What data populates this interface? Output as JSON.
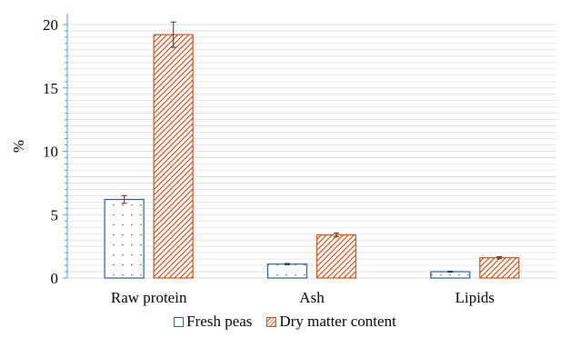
{
  "chart_data": {
    "type": "bar",
    "title": "",
    "xlabel": "",
    "ylabel": "%",
    "ylim": [
      0,
      20
    ],
    "yticks": [
      0,
      5,
      10,
      15,
      20
    ],
    "grid": true,
    "legend_position": "bottom",
    "categories": [
      "Raw protein",
      "Ash",
      "Lipids"
    ],
    "series": [
      {
        "name": "Fresh peas",
        "values": [
          6.2,
          1.1,
          0.5
        ],
        "errors": [
          0.3,
          0.05,
          0.04
        ],
        "color": "#2e5f8a",
        "pattern": "dots"
      },
      {
        "name": "Dry matter content",
        "values": [
          19.2,
          3.4,
          1.6
        ],
        "errors": [
          1.0,
          0.15,
          0.08
        ],
        "color": "#c0561e",
        "pattern": "diagonal-hatch"
      }
    ],
    "colors": {
      "grid": "#d9d9d9",
      "y_axis": "#5b9bd5"
    }
  }
}
